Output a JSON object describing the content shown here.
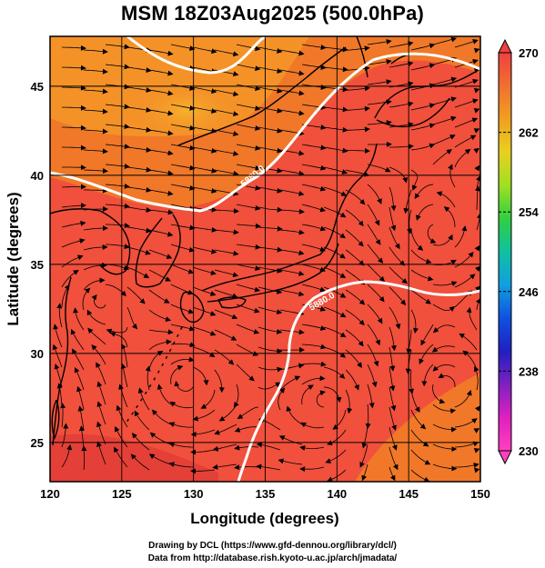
{
  "title": "MSM 18Z03Aug2025 (500.0hPa)",
  "credits": [
    "Drawing by DCL (https://www.gfd-dennou.org/library/dcl/)",
    "Data from http://database.rish.kyoto-u.ac.jp/arch/jmadata/"
  ],
  "map": {
    "xlabel": "Longitude (degrees)",
    "ylabel": "Latitude  (degrees)",
    "lon_range": [
      120,
      150
    ],
    "lat_range": [
      22.8,
      47.8
    ],
    "lon_ticks": [
      120,
      125,
      130,
      135,
      140,
      145,
      150
    ],
    "lat_ticks": [
      25,
      30,
      35,
      40,
      45
    ],
    "lon_tick_labels": [
      "120",
      "125",
      "130",
      "135",
      "140",
      "145",
      "150"
    ],
    "lat_tick_labels": [
      "25",
      "30",
      "35",
      "40",
      "45"
    ],
    "contour_label": "5880.0",
    "field_colors": {
      "background": "#f0503c",
      "orange": "#f07828",
      "warm_orange": "#f49228",
      "yellow_orange": "#f5ac2a",
      "dark_red": "#e44038"
    }
  },
  "colorbar": {
    "min": 230,
    "max": 270,
    "labels": [
      "270",
      "262",
      "254",
      "246",
      "238",
      "230"
    ],
    "colors": [
      "#f04040",
      "#f07030",
      "#f0a020",
      "#e8d020",
      "#a0e020",
      "#30d040",
      "#10c0a0",
      "#10a0e0",
      "#1050e0",
      "#2020c0",
      "#8020c0",
      "#e020c0",
      "#ff40c0"
    ]
  }
}
